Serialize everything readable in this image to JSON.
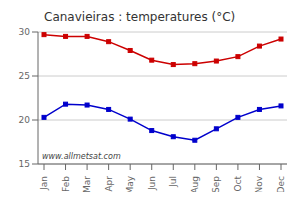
{
  "chart_data": {
    "type": "line",
    "title": "Canavieiras : temperatures (°C)",
    "categories": [
      "Jan",
      "Feb",
      "Mar",
      "Apr",
      "May",
      "Jun",
      "Jul",
      "Aug",
      "Sep",
      "Oct",
      "Nov",
      "Dec"
    ],
    "series": [
      {
        "color": "#cc0000",
        "marker": "square",
        "values": [
          29.7,
          29.5,
          29.5,
          28.9,
          27.9,
          26.8,
          26.3,
          26.4,
          26.7,
          27.2,
          28.4,
          29.2
        ]
      },
      {
        "color": "#0000cc",
        "marker": "square",
        "values": [
          20.3,
          21.8,
          21.7,
          21.2,
          20.1,
          18.8,
          18.1,
          17.7,
          19.0,
          20.3,
          21.2,
          21.6
        ]
      }
    ],
    "ylim": [
      15,
      30
    ],
    "yticks": [
      15,
      20,
      25,
      30
    ],
    "grid": true,
    "annotation": "www.allmetsat.com"
  }
}
